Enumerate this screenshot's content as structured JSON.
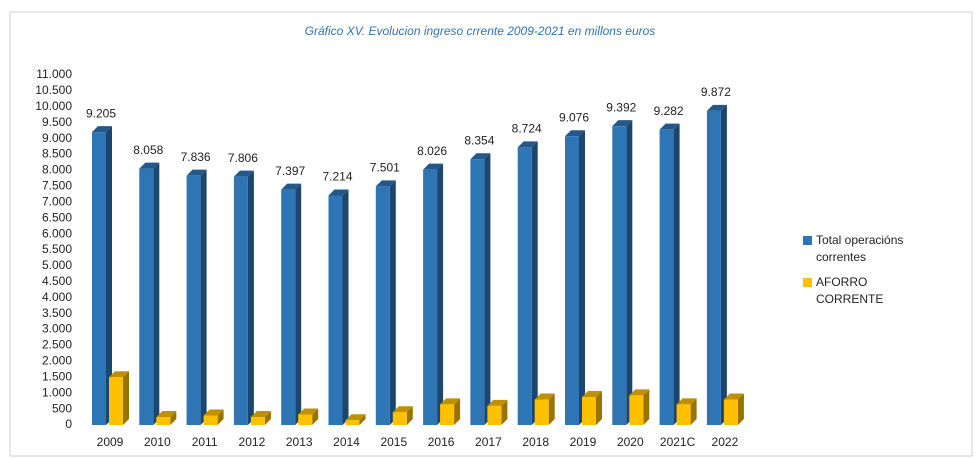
{
  "chart_data": {
    "type": "bar3d",
    "title": "Gráfico XV. Evolucion ingreso crrente 2009-2021 en millons euros",
    "categories": [
      "2009",
      "2010",
      "2011",
      "2012",
      "2013",
      "2014",
      "2015",
      "2016",
      "2017",
      "2018",
      "2019",
      "2020",
      "2021C",
      "2022"
    ],
    "series": [
      {
        "name": "Total operacións correntes",
        "color": "#2e75b6",
        "values": [
          9205,
          8058,
          7836,
          7806,
          7397,
          7214,
          7501,
          8026,
          8354,
          8724,
          9076,
          9392,
          9282,
          9872
        ],
        "value_labels": [
          "9.205",
          "8.058",
          "7.836",
          "7.806",
          "7.397",
          "7.214",
          "7.501",
          "8.026",
          "8.354",
          "8.724",
          "9.076",
          "9.392",
          "9.282",
          "9.872"
        ]
      },
      {
        "name": "AFORRO CORRENTE",
        "color": "#ffc000",
        "values": [
          1500,
          250,
          300,
          250,
          330,
          150,
          400,
          650,
          600,
          800,
          880,
          930,
          650,
          800
        ]
      }
    ],
    "ylim": [
      0,
      11000
    ],
    "yticks": [
      0,
      500,
      {
        "value": 1000,
        "label": "1.000"
      },
      {
        "value": 1500,
        "label": "1.500"
      },
      {
        "value": 2000,
        "label": "2.000"
      },
      {
        "value": 2500,
        "label": "2.500"
      },
      {
        "value": 3000,
        "label": "3.000"
      },
      {
        "value": 3500,
        "label": "3.500"
      },
      {
        "value": 4000,
        "label": "4.000"
      },
      {
        "value": 4500,
        "label": "4.500"
      },
      {
        "value": 5000,
        "label": "5.000"
      },
      {
        "value": 5500,
        "label": "5.500"
      },
      {
        "value": 6000,
        "label": "6.000"
      },
      {
        "value": 6500,
        "label": "6.500"
      },
      {
        "value": 7000,
        "label": "7.000"
      },
      {
        "value": 7500,
        "label": "7.500"
      },
      {
        "value": 8000,
        "label": "8.000"
      },
      {
        "value": 8500,
        "label": "8.500"
      },
      {
        "value": 9000,
        "label": "9.000"
      },
      {
        "value": 9500,
        "label": "9.500"
      },
      {
        "value": 10000,
        "label": "10.000"
      },
      {
        "value": 10500,
        "label": "10.500"
      },
      {
        "value": 11000,
        "label": "11.000"
      }
    ],
    "legend": "right"
  }
}
